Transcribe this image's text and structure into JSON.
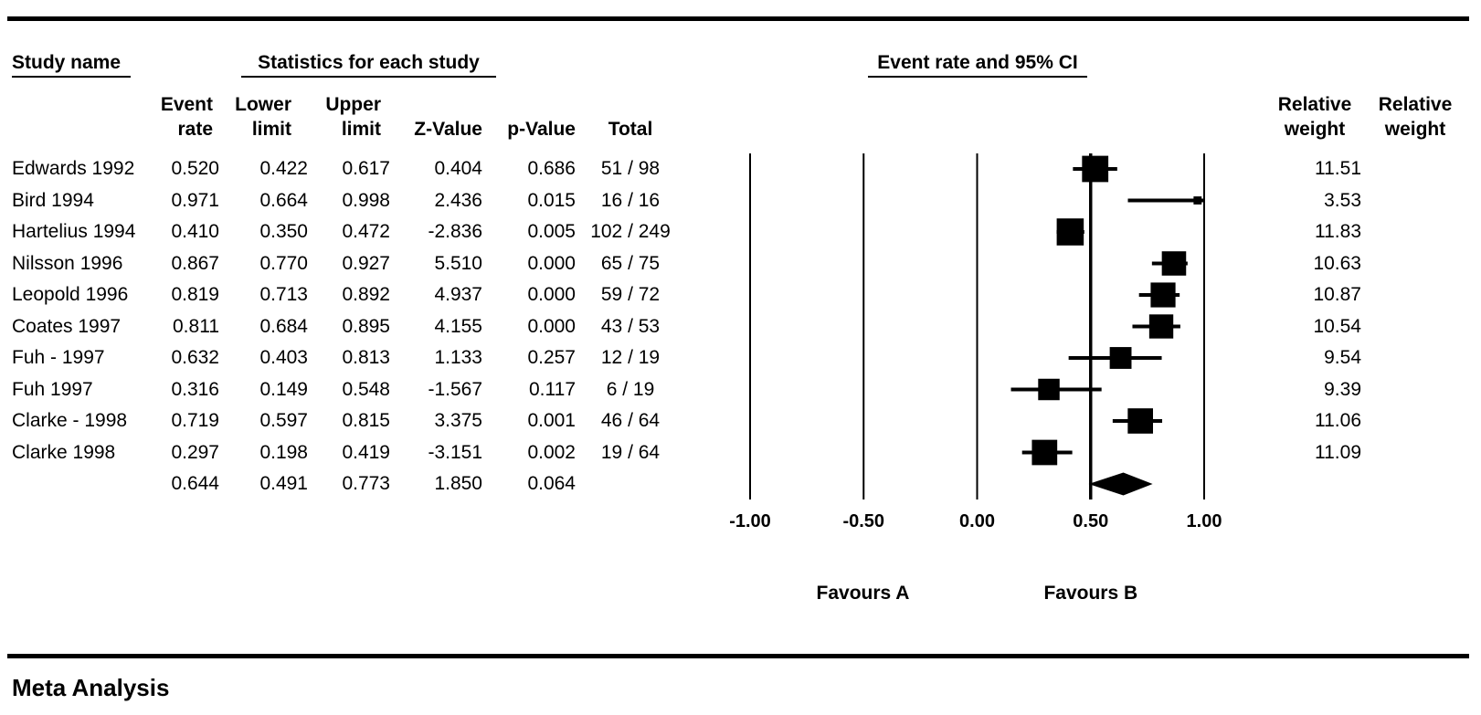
{
  "labels": {
    "study_header": "Study name",
    "stats_header": "Statistics for each study",
    "plot_header": "Event rate and 95% CI",
    "col_event_rate": "Event\nrate",
    "col_lower_limit": "Lower\nlimit",
    "col_upper_limit": "Upper\nlimit",
    "col_z_value": "Z-Value",
    "col_p_value": "p-Value",
    "col_total": "Total",
    "col_relative_weight_1": "Relative\nweight",
    "col_relative_weight_2": "Relative\nweight",
    "figure_title": "Meta Analysis"
  },
  "chart_data": {
    "type": "forest",
    "title": "Event rate and 95% CI",
    "x_ticks": [
      -1.0,
      -0.5,
      0.0,
      0.5,
      1.0
    ],
    "x_tick_labels": [
      "-1.00",
      "-0.50",
      "0.00",
      "0.50",
      "1.00"
    ],
    "xlim": [
      -1.0,
      1.0
    ],
    "center_line_x": 0.5,
    "favours_left": "Favours A",
    "favours_right": "Favours B",
    "studies": [
      {
        "name": "Edwards 1992",
        "event_rate": 0.52,
        "lower": 0.422,
        "upper": 0.617,
        "z": 0.404,
        "p": 0.686,
        "total": "51 / 98",
        "weight": 11.51
      },
      {
        "name": "Bird 1994",
        "event_rate": 0.971,
        "lower": 0.664,
        "upper": 0.998,
        "z": 2.436,
        "p": 0.015,
        "total": "16 / 16",
        "weight": 3.53
      },
      {
        "name": "Hartelius 1994",
        "event_rate": 0.41,
        "lower": 0.35,
        "upper": 0.472,
        "z": -2.836,
        "p": 0.005,
        "total": "102 / 249",
        "weight": 11.83
      },
      {
        "name": "Nilsson 1996",
        "event_rate": 0.867,
        "lower": 0.77,
        "upper": 0.927,
        "z": 5.51,
        "p": 0.0,
        "total": "65 / 75",
        "weight": 10.63
      },
      {
        "name": "Leopold 1996",
        "event_rate": 0.819,
        "lower": 0.713,
        "upper": 0.892,
        "z": 4.937,
        "p": 0.0,
        "total": "59 / 72",
        "weight": 10.87
      },
      {
        "name": "Coates 1997",
        "event_rate": 0.811,
        "lower": 0.684,
        "upper": 0.895,
        "z": 4.155,
        "p": 0.0,
        "total": "43 / 53",
        "weight": 10.54
      },
      {
        "name": "Fuh - 1997",
        "event_rate": 0.632,
        "lower": 0.403,
        "upper": 0.813,
        "z": 1.133,
        "p": 0.257,
        "total": "12 / 19",
        "weight": 9.54
      },
      {
        "name": "Fuh 1997",
        "event_rate": 0.316,
        "lower": 0.149,
        "upper": 0.548,
        "z": -1.567,
        "p": 0.117,
        "total": "6 / 19",
        "weight": 9.39
      },
      {
        "name": "Clarke - 1998",
        "event_rate": 0.719,
        "lower": 0.597,
        "upper": 0.815,
        "z": 3.375,
        "p": 0.001,
        "total": "46 / 64",
        "weight": 11.06
      },
      {
        "name": "Clarke 1998",
        "event_rate": 0.297,
        "lower": 0.198,
        "upper": 0.419,
        "z": -3.151,
        "p": 0.002,
        "total": "19 / 64",
        "weight": 11.09
      }
    ],
    "summary": {
      "event_rate": 0.644,
      "lower": 0.491,
      "upper": 0.773,
      "z": 1.85,
      "p": 0.064
    }
  }
}
